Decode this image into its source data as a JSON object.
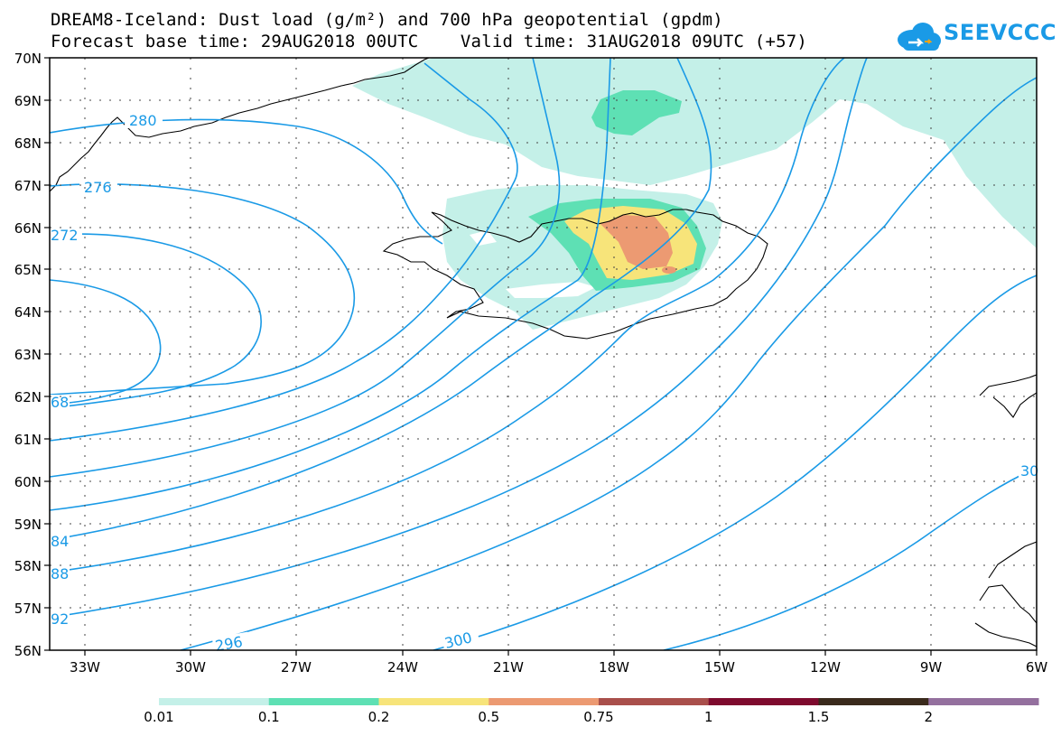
{
  "header": {
    "title_line1": "DREAM8-Iceland: Dust load (g/m²) and 700 hPa geopotential (gpdm)",
    "title_line2": "Forecast base time: 29AUG2018 00UTC    Valid time: 31AUG2018 09UTC (+57)"
  },
  "logo": {
    "text": "SEEVCCC",
    "icon": "cloud-icon",
    "color": "#1a9ae6"
  },
  "axes": {
    "lat_labels": [
      "70N",
      "69N",
      "68N",
      "67N",
      "66N",
      "65N",
      "64N",
      "63N",
      "62N",
      "61N",
      "60N",
      "59N",
      "58N",
      "57N",
      "56N"
    ],
    "lon_labels": [
      "33W",
      "30W",
      "27W",
      "24W",
      "21W",
      "18W",
      "15W",
      "12W",
      "9W",
      "6W"
    ]
  },
  "contours": {
    "color": "#1a9ae6",
    "labels": [
      "280",
      "276",
      "272",
      "68",
      "84",
      "88",
      "92",
      "296",
      "300",
      "30"
    ]
  },
  "colorbar": {
    "colors": [
      "#c4f0e8",
      "#5ee0b4",
      "#f7e47a",
      "#ec9a72",
      "#a94f4b",
      "#7e0a2e",
      "#3a2a1c",
      "#94709e"
    ],
    "labels": [
      "0.01",
      "0.1",
      "0.2",
      "0.5",
      "0.75",
      "1",
      "1.5",
      "2"
    ]
  }
}
